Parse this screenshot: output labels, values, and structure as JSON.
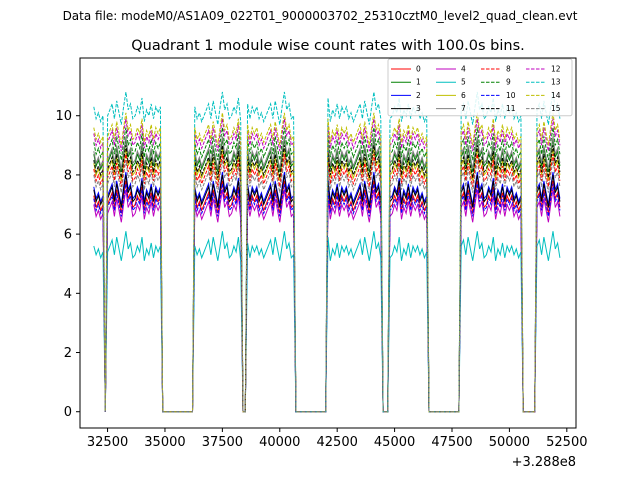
{
  "chart_data": {
    "type": "line",
    "suptitle": "Data file: modeM0/AS1A09_022T01_9000003702_25310cztM0_level2_quad_clean.evt",
    "title": "Quadrant 1 module wise count rates with 100.0s bins.",
    "xlabel": "",
    "ylabel": "",
    "x_offset_label": "+3.288e8",
    "xlim": [
      31300,
      52900
    ],
    "ylim": [
      -0.55,
      11.95
    ],
    "xticks": [
      32500,
      35000,
      37500,
      40000,
      42500,
      45000,
      47500,
      50000,
      52500
    ],
    "xtick_labels": [
      "32500",
      "35000",
      "37500",
      "40000",
      "42500",
      "45000",
      "47500",
      "50000",
      "52500"
    ],
    "yticks": [
      0,
      2,
      4,
      6,
      8,
      10
    ],
    "ytick_labels": [
      "0",
      "2",
      "4",
      "6",
      "8",
      "10"
    ],
    "legend": {
      "placement": "top-right",
      "columns": 4
    },
    "bin_seconds": 100,
    "x_start": 31900,
    "segments": [
      {
        "from": 31900,
        "to": 32300,
        "kind": "on",
        "start_offset": 0
      },
      {
        "from": 32400,
        "to": 32400,
        "kind": "gap"
      },
      {
        "from": 32500,
        "to": 34800,
        "kind": "on",
        "start_offset": 4
      },
      {
        "from": 34900,
        "to": 36200,
        "kind": "gap"
      },
      {
        "from": 36300,
        "to": 38300,
        "kind": "on",
        "start_offset": 27
      },
      {
        "from": 38400,
        "to": 38500,
        "kind": "gap"
      },
      {
        "from": 38600,
        "to": 40600,
        "kind": "on",
        "start_offset": 50
      },
      {
        "from": 40700,
        "to": 42000,
        "kind": "gap"
      },
      {
        "from": 42100,
        "to": 44400,
        "kind": "on",
        "start_offset": 73
      },
      {
        "from": 44500,
        "to": 44700,
        "kind": "gap"
      },
      {
        "from": 44800,
        "to": 46400,
        "kind": "on",
        "start_offset": 96
      },
      {
        "from": 46500,
        "to": 47800,
        "kind": "gap"
      },
      {
        "from": 47900,
        "to": 50500,
        "kind": "on",
        "start_offset": 113
      },
      {
        "from": 50600,
        "to": 51100,
        "kind": "gap"
      },
      {
        "from": 51200,
        "to": 52200,
        "kind": "on",
        "start_offset": 140
      }
    ],
    "series": [
      {
        "name": "0",
        "color": "#ff0000",
        "dash": "solid",
        "base": [
          7.3,
          6.9,
          7.1,
          6.8,
          7.0,
          7.2,
          7.4,
          6.9,
          7.5,
          7.1,
          6.7,
          7.3,
          7.8,
          7.2,
          7.4,
          6.9,
          7.0,
          7.3,
          7.1,
          7.6,
          6.8,
          7.2,
          7.0,
          7.4,
          6.9,
          7.3,
          7.1
        ]
      },
      {
        "name": "1",
        "color": "#008000",
        "dash": "solid",
        "base": [
          8.7,
          8.3,
          8.5,
          8.2,
          8.4,
          8.6,
          8.8,
          8.3,
          8.9,
          8.5,
          8.1,
          8.7,
          9.2,
          8.6,
          8.8,
          8.3,
          8.4,
          8.7,
          8.5,
          9.0,
          8.2,
          8.6,
          8.4,
          8.8,
          8.3,
          8.7,
          8.5
        ]
      },
      {
        "name": "2",
        "color": "#0000ff",
        "dash": "solid",
        "base": [
          7.6,
          7.2,
          7.4,
          7.1,
          7.3,
          7.5,
          7.7,
          7.2,
          7.8,
          7.4,
          7.0,
          7.6,
          8.1,
          7.5,
          7.7,
          7.2,
          7.3,
          7.6,
          7.4,
          7.9,
          7.1,
          7.5,
          7.3,
          7.7,
          7.2,
          7.6,
          7.4
        ]
      },
      {
        "name": "3",
        "color": "#000000",
        "dash": "solid",
        "base": [
          7.5,
          7.1,
          7.3,
          7.0,
          7.2,
          7.4,
          7.6,
          7.1,
          7.7,
          7.3,
          6.9,
          7.5,
          8.0,
          7.4,
          7.6,
          7.1,
          7.2,
          7.5,
          7.3,
          7.8,
          7.0,
          7.4,
          7.2,
          7.6,
          7.1,
          7.5,
          7.3
        ]
      },
      {
        "name": "4",
        "color": "#bf00bf",
        "dash": "solid",
        "base": [
          7.0,
          6.6,
          6.8,
          6.5,
          6.7,
          6.9,
          7.1,
          6.6,
          7.2,
          6.8,
          6.4,
          7.0,
          7.5,
          6.9,
          7.1,
          6.6,
          6.7,
          7.0,
          6.8,
          7.3,
          6.5,
          6.9,
          6.7,
          7.1,
          6.6,
          7.0,
          6.8
        ]
      },
      {
        "name": "5",
        "color": "#00bfbf",
        "dash": "solid",
        "base": [
          5.6,
          5.3,
          5.5,
          5.2,
          5.4,
          5.6,
          5.8,
          5.3,
          5.9,
          5.5,
          5.1,
          5.6,
          6.1,
          5.5,
          5.7,
          5.2,
          5.3,
          5.6,
          5.4,
          5.9,
          5.1,
          5.5,
          5.3,
          5.7,
          5.2,
          5.6,
          5.4
        ]
      },
      {
        "name": "6",
        "color": "#bfbf00",
        "dash": "solid",
        "base": [
          8.4,
          8.0,
          8.2,
          7.9,
          8.1,
          8.3,
          8.5,
          8.0,
          8.6,
          8.2,
          7.8,
          8.4,
          8.9,
          8.3,
          8.5,
          8.0,
          8.1,
          8.4,
          8.2,
          8.7,
          7.9,
          8.3,
          8.1,
          8.5,
          8.0,
          8.4,
          8.2
        ]
      },
      {
        "name": "7",
        "color": "#808080",
        "dash": "solid",
        "base": [
          8.8,
          8.4,
          8.6,
          8.3,
          8.5,
          8.7,
          8.9,
          8.4,
          9.0,
          8.6,
          8.2,
          8.8,
          9.3,
          8.7,
          8.9,
          8.4,
          8.5,
          8.8,
          8.6,
          9.1,
          8.3,
          8.7,
          8.5,
          8.9,
          8.4,
          8.8,
          8.6
        ]
      },
      {
        "name": "8",
        "color": "#ff0000",
        "dash": "dashed",
        "base": [
          8.2,
          7.8,
          8.0,
          7.7,
          7.9,
          8.1,
          8.3,
          7.8,
          8.4,
          8.0,
          7.6,
          8.2,
          8.7,
          8.1,
          8.3,
          7.8,
          7.9,
          8.2,
          8.0,
          8.5,
          7.7,
          8.1,
          7.9,
          8.3,
          7.8,
          8.2,
          8.0
        ]
      },
      {
        "name": "9",
        "color": "#008000",
        "dash": "dashed",
        "base": [
          9.1,
          8.7,
          8.9,
          8.6,
          8.8,
          9.0,
          9.2,
          8.7,
          9.3,
          8.9,
          8.5,
          9.1,
          9.6,
          9.0,
          9.2,
          8.7,
          8.8,
          9.1,
          8.9,
          9.4,
          8.6,
          9.0,
          8.8,
          9.2,
          8.7,
          9.1,
          8.9
        ]
      },
      {
        "name": "10",
        "color": "#0000ff",
        "dash": "dashed",
        "base": [
          7.2,
          6.8,
          7.0,
          6.7,
          6.9,
          7.1,
          7.3,
          6.8,
          7.4,
          7.0,
          6.6,
          7.2,
          7.7,
          7.1,
          7.3,
          6.8,
          6.9,
          7.2,
          7.0,
          7.5,
          6.7,
          7.1,
          6.9,
          7.3,
          6.8,
          7.2,
          7.0
        ]
      },
      {
        "name": "11",
        "color": "#000000",
        "dash": "dashed",
        "base": [
          8.5,
          8.1,
          8.3,
          8.0,
          8.2,
          8.4,
          8.6,
          8.1,
          8.7,
          8.3,
          7.9,
          8.5,
          9.0,
          8.4,
          8.6,
          8.1,
          8.2,
          8.5,
          8.3,
          8.8,
          8.0,
          8.4,
          8.2,
          8.6,
          8.1,
          8.5,
          8.3
        ]
      },
      {
        "name": "12",
        "color": "#bf00bf",
        "dash": "dashed",
        "base": [
          9.4,
          9.0,
          9.2,
          8.9,
          9.1,
          9.3,
          9.5,
          9.0,
          9.6,
          9.2,
          8.8,
          9.4,
          9.9,
          9.3,
          9.5,
          9.0,
          9.1,
          9.4,
          9.2,
          9.7,
          8.9,
          9.3,
          9.1,
          9.5,
          9.0,
          9.4,
          9.2
        ]
      },
      {
        "name": "13",
        "color": "#00bfbf",
        "dash": "dashed",
        "base": [
          10.3,
          9.9,
          10.1,
          9.8,
          10.0,
          10.2,
          10.4,
          9.9,
          10.5,
          10.1,
          9.7,
          10.3,
          10.8,
          10.2,
          10.4,
          9.9,
          10.0,
          10.3,
          10.1,
          10.6,
          9.8,
          10.2,
          10.0,
          10.4,
          9.9,
          10.3,
          10.1
        ]
      },
      {
        "name": "14",
        "color": "#bfbf00",
        "dash": "dashed",
        "base": [
          9.6,
          9.2,
          9.4,
          9.1,
          9.3,
          9.5,
          9.7,
          9.2,
          9.8,
          9.4,
          9.0,
          9.6,
          10.1,
          9.5,
          9.7,
          9.2,
          9.3,
          9.6,
          9.4,
          9.9,
          9.1,
          9.5,
          9.3,
          9.7,
          9.2,
          9.6,
          9.4
        ]
      },
      {
        "name": "15",
        "color": "#808080",
        "dash": "dashed",
        "base": [
          8.0,
          7.6,
          7.8,
          7.5,
          7.7,
          7.9,
          8.1,
          7.6,
          8.2,
          7.8,
          7.4,
          8.0,
          8.5,
          7.9,
          8.1,
          7.6,
          7.7,
          8.0,
          7.8,
          8.3,
          7.5,
          7.9,
          7.7,
          8.1,
          7.6,
          8.0,
          7.8
        ]
      }
    ]
  }
}
